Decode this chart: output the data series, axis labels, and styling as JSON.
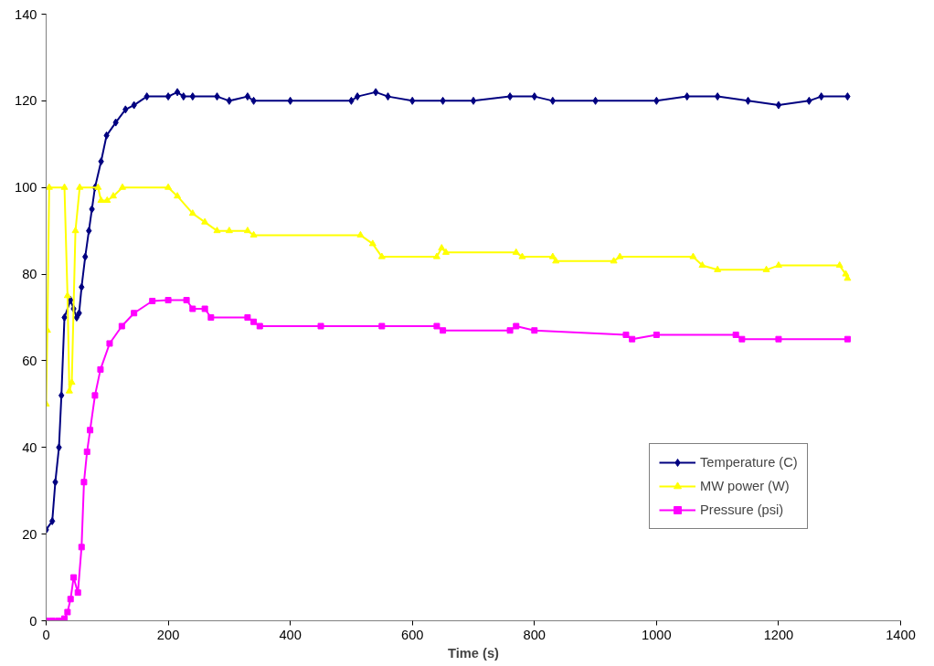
{
  "chart_data": {
    "type": "line",
    "xlabel": "Time (s)",
    "xlim": [
      0,
      1400
    ],
    "ylim": [
      0,
      140
    ],
    "xticks": [
      0,
      200,
      400,
      600,
      800,
      1000,
      1200,
      1400
    ],
    "yticks": [
      0,
      20,
      40,
      60,
      80,
      100,
      120,
      140
    ],
    "grid": false,
    "legend": "right",
    "line_style": "solid",
    "series": [
      {
        "name": "Temperature (C)",
        "color": "#000080",
        "marker": "diamond",
        "x": [
          0,
          10,
          15,
          21,
          25,
          30,
          40,
          45,
          50,
          54,
          58,
          64,
          70,
          75,
          80,
          90,
          99,
          114,
          130,
          144,
          165,
          200,
          215,
          225,
          240,
          280,
          300,
          330,
          340,
          400,
          500,
          510,
          540,
          560,
          600,
          650,
          700,
          760,
          800,
          830,
          900,
          1000,
          1050,
          1100,
          1150,
          1200,
          1250,
          1270,
          1313
        ],
        "values": [
          21,
          23,
          32,
          40,
          52,
          70,
          74,
          72,
          70,
          71,
          77,
          84,
          90,
          95,
          100,
          106,
          112,
          115,
          118,
          119,
          121,
          121,
          122,
          121,
          121,
          121,
          120,
          121,
          120,
          120,
          120,
          121,
          122,
          121,
          120,
          120,
          120,
          121,
          121,
          120,
          120,
          120,
          121,
          121,
          120,
          119,
          120,
          121,
          121
        ]
      },
      {
        "name": "MW power (W)",
        "color": "#ffff00",
        "marker": "triangle",
        "x": [
          0,
          2,
          5,
          30,
          35,
          38,
          42,
          48,
          55,
          85,
          90,
          100,
          110,
          125,
          200,
          215,
          240,
          260,
          280,
          300,
          330,
          340,
          515,
          535,
          550,
          640,
          648,
          655,
          770,
          780,
          830,
          835,
          930,
          940,
          1060,
          1075,
          1100,
          1180,
          1200,
          1300,
          1310,
          1313
        ],
        "values": [
          50,
          67,
          100,
          100,
          75,
          53,
          55,
          90,
          100,
          100,
          97,
          97,
          98,
          100,
          100,
          98,
          94,
          92,
          90,
          90,
          90,
          89,
          89,
          87,
          84,
          84,
          86,
          85,
          85,
          84,
          84,
          83,
          83,
          84,
          84,
          82,
          81,
          81,
          82,
          82,
          80,
          79
        ]
      },
      {
        "name": "Pressure (psi)",
        "color": "#ff00ff",
        "marker": "square",
        "x": [
          0,
          10,
          20,
          25,
          30,
          35,
          40,
          45,
          52,
          58,
          62,
          67,
          72,
          80,
          89,
          104,
          124,
          144,
          174,
          200,
          230,
          240,
          260,
          270,
          330,
          340,
          350,
          450,
          550,
          640,
          650,
          760,
          770,
          800,
          950,
          960,
          1000,
          1130,
          1140,
          1200,
          1313
        ],
        "values": [
          0,
          0,
          0,
          0,
          0.5,
          2,
          5,
          10,
          6.5,
          17,
          32,
          39,
          44,
          52,
          58,
          64,
          68,
          71,
          73.8,
          74,
          74,
          72,
          72,
          70,
          70,
          69,
          68,
          68,
          68,
          68,
          67,
          67,
          68,
          67,
          66,
          65,
          66,
          66,
          65,
          65,
          65
        ]
      }
    ]
  }
}
